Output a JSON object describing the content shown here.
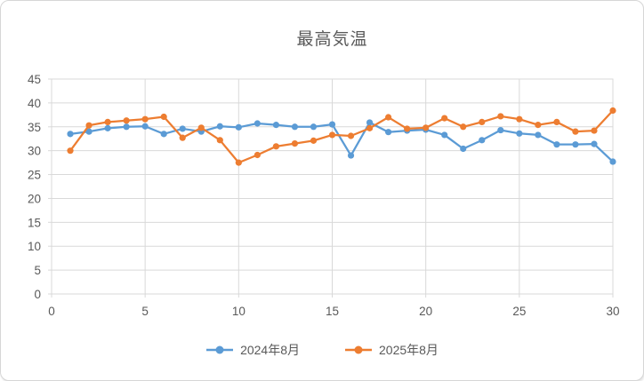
{
  "chart": {
    "title": "最高気温",
    "colors": {
      "series_blue": "#5B9BD5",
      "series_orange": "#ED7D31",
      "gridline": "#D9D9D9",
      "tick_text": "#595959",
      "title_text": "#595959"
    }
  },
  "chart_data": {
    "type": "line",
    "title": "最高気温",
    "xlabel": "",
    "ylabel": "",
    "xlim": [
      0,
      30
    ],
    "ylim": [
      0,
      45
    ],
    "x_ticks": [
      0,
      5,
      10,
      15,
      20,
      25,
      30
    ],
    "y_ticks": [
      0,
      5,
      10,
      15,
      20,
      25,
      30,
      35,
      40,
      45
    ],
    "grid": true,
    "marker": "circle",
    "legend_position": "bottom",
    "x": [
      1,
      2,
      3,
      4,
      5,
      6,
      7,
      8,
      9,
      10,
      11,
      12,
      13,
      14,
      15,
      16,
      17,
      18,
      19,
      20,
      21,
      22,
      23,
      24,
      25,
      26,
      27,
      28,
      29,
      30
    ],
    "series": [
      {
        "name": "2024年8月",
        "color": "#5B9BD5",
        "values": [
          33.5,
          34.0,
          34.7,
          35.0,
          35.1,
          33.5,
          34.6,
          34.0,
          35.1,
          34.9,
          35.7,
          35.4,
          35.0,
          35.0,
          35.5,
          29.0,
          35.9,
          33.9,
          34.2,
          34.4,
          33.3,
          30.4,
          32.2,
          34.3,
          33.6,
          33.3,
          31.3,
          31.3,
          31.4,
          27.7
        ]
      },
      {
        "name": "2025年8月",
        "color": "#ED7D31",
        "values": [
          30.0,
          35.3,
          36.0,
          36.3,
          36.6,
          37.1,
          32.7,
          34.8,
          32.2,
          27.5,
          29.1,
          30.9,
          31.5,
          32.1,
          33.3,
          33.1,
          34.7,
          37.0,
          34.6,
          34.8,
          36.8,
          35.0,
          36.0,
          37.2,
          36.6,
          35.4,
          36.0,
          34.0,
          34.2,
          38.4
        ]
      }
    ]
  }
}
